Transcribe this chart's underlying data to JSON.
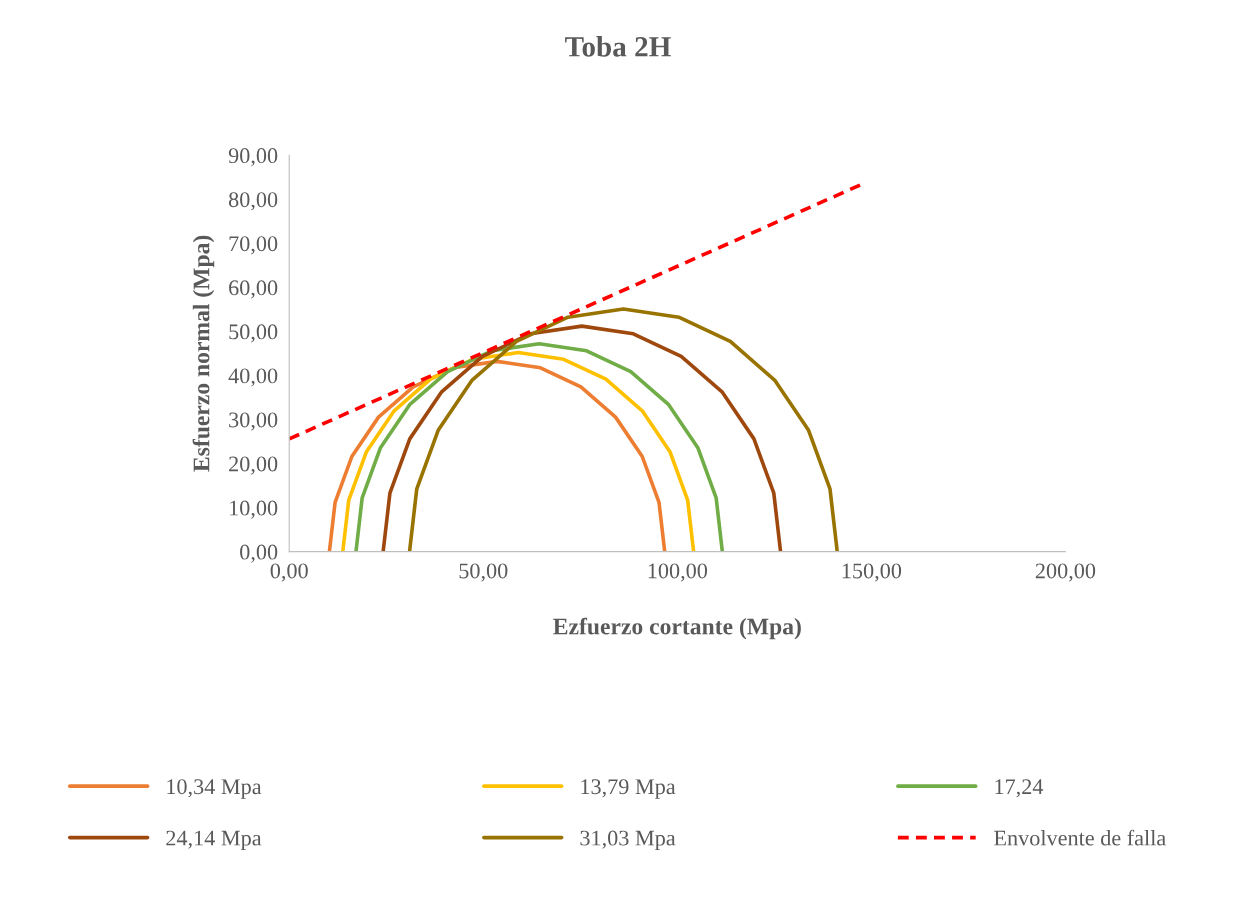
{
  "chart_data": {
    "type": "line",
    "title": "Toba 2H",
    "xlabel": "Ezfuerzo cortante (Mpa)",
    "ylabel": "Esfuerzo normal (Mpa)",
    "xlim": [
      0,
      200
    ],
    "ylim": [
      0,
      90
    ],
    "xticks": [
      {
        "value": 0,
        "label": "0,00"
      },
      {
        "value": 50,
        "label": "50,00"
      },
      {
        "value": 100,
        "label": "100,00"
      },
      {
        "value": 150,
        "label": "150,00"
      },
      {
        "value": 200,
        "label": "200,00"
      }
    ],
    "yticks": [
      {
        "value": 0,
        "label": "0,00"
      },
      {
        "value": 10,
        "label": "10,00"
      },
      {
        "value": 20,
        "label": "20,00"
      },
      {
        "value": 30,
        "label": "30,00"
      },
      {
        "value": 40,
        "label": "40,00"
      },
      {
        "value": 50,
        "label": "50,00"
      },
      {
        "value": 60,
        "label": "60,00"
      },
      {
        "value": 70,
        "label": "70,00"
      },
      {
        "value": 80,
        "label": "80,00"
      },
      {
        "value": 90,
        "label": "90,00"
      }
    ],
    "grid": false,
    "legend": "bottom",
    "marker": "none",
    "series": [
      {
        "name": "10,34 Mpa",
        "color": "#ed7d31",
        "x": [
          10.35,
          11.82,
          16.14,
          23.01,
          31.95,
          42.36,
          53.55,
          64.74,
          75.15,
          84.09,
          90.96,
          95.28,
          96.75
        ],
        "values": [
          0,
          11.19,
          21.6,
          30.54,
          37.41,
          41.73,
          43.2,
          41.73,
          37.41,
          30.54,
          21.6,
          11.19,
          0
        ]
      },
      {
        "name": "13,79 Mpa",
        "color": "#ffc000",
        "x": [
          13.8,
          15.34,
          19.86,
          27.04,
          36.4,
          47.29,
          59.0,
          70.71,
          81.6,
          90.96,
          98.14,
          102.66,
          104.2
        ],
        "values": [
          0,
          11.71,
          22.6,
          31.96,
          39.14,
          43.66,
          45.2,
          43.66,
          39.14,
          31.96,
          22.6,
          11.71,
          0
        ]
      },
      {
        "name": "17,24",
        "color": "#70ad47",
        "x": [
          17.2,
          18.8,
          23.52,
          31.03,
          40.8,
          52.18,
          64.4,
          76.62,
          88.0,
          97.77,
          105.28,
          110.0,
          111.6
        ],
        "values": [
          0,
          12.22,
          23.6,
          33.37,
          40.88,
          45.6,
          47.2,
          45.6,
          40.88,
          33.37,
          23.6,
          12.22,
          0
        ]
      },
      {
        "name": "24,14 Mpa",
        "color": "#9e480e",
        "x": [
          24.2,
          25.94,
          31.06,
          39.2,
          49.8,
          62.14,
          75.4,
          88.66,
          101.0,
          111.6,
          119.74,
          124.86,
          126.6
        ],
        "values": [
          0,
          13.26,
          25.6,
          36.2,
          44.34,
          49.46,
          51.2,
          49.46,
          44.34,
          36.2,
          25.6,
          13.26,
          0
        ]
      },
      {
        "name": "31,03 Mpa",
        "color": "#997300",
        "x": [
          31.0,
          32.87,
          38.38,
          47.14,
          58.55,
          71.83,
          86.1,
          100.37,
          113.65,
          125.06,
          133.82,
          139.33,
          141.2
        ],
        "values": [
          0,
          14.27,
          27.55,
          38.96,
          47.72,
          53.23,
          55.1,
          53.23,
          47.72,
          38.96,
          27.55,
          14.27,
          0
        ]
      },
      {
        "name": "Envolvente de falla",
        "color": "#ff0000",
        "line_style": "dashed",
        "x": [
          0,
          148.3
        ],
        "values": [
          25.6,
          83.7
        ]
      }
    ]
  }
}
